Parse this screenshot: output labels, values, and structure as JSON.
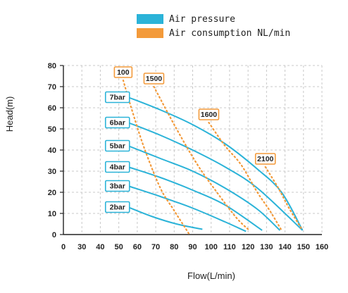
{
  "chart_data": {
    "type": "line",
    "xlabel": "Flow(L/min)",
    "ylabel": "Head(m)",
    "xlim": [
      0,
      160
    ],
    "ylim": [
      0,
      80
    ],
    "x_ticks": [
      "0",
      "30",
      "40",
      "50",
      "60",
      "70",
      "80",
      "90",
      "100",
      "110",
      "120",
      "130",
      "140",
      "150",
      "160"
    ],
    "y_ticks": [
      "0",
      "10",
      "20",
      "30",
      "40",
      "50",
      "60",
      "70",
      "80"
    ],
    "grid": "dashed",
    "legend": [
      {
        "label": "Air pressure",
        "color": "#2bb3d8"
      },
      {
        "label": "Air consumption NL/min",
        "color": "#f39a3a"
      }
    ],
    "series": [
      {
        "name": "2bar",
        "kind": "air-pressure",
        "x": [
          40,
          55,
          70,
          86
        ],
        "y": [
          13,
          8.5,
          5,
          2.5
        ]
      },
      {
        "name": "3bar",
        "kind": "air-pressure",
        "x": [
          40,
          60,
          80,
          100,
          113
        ],
        "y": [
          23,
          18,
          12.5,
          6,
          1.5
        ]
      },
      {
        "name": "4bar",
        "kind": "air-pressure",
        "x": [
          40,
          60,
          80,
          100,
          123
        ],
        "y": [
          32,
          27,
          21,
          14,
          2
        ]
      },
      {
        "name": "5bar",
        "kind": "air-pressure",
        "x": [
          40,
          60,
          80,
          100,
          120,
          134
        ],
        "y": [
          42,
          36,
          30,
          22,
          12,
          2
        ]
      },
      {
        "name": "6bar",
        "kind": "air-pressure",
        "x": [
          40,
          60,
          80,
          100,
          120,
          148
        ],
        "y": [
          53,
          47,
          40,
          32,
          22,
          2
        ]
      },
      {
        "name": "7bar",
        "kind": "air-pressure",
        "x": [
          40,
          60,
          80,
          100,
          120,
          135,
          148
        ],
        "y": [
          65,
          59,
          52,
          43,
          31,
          20,
          2
        ]
      },
      {
        "name": "100",
        "kind": "air-consumption",
        "x": [
          37,
          42,
          50,
          60,
          68,
          73,
          78
        ],
        "y": [
          73,
          60,
          41,
          22,
          12,
          6,
          0
        ]
      },
      {
        "name": "1500",
        "kind": "air-consumption",
        "x": [
          56,
          70,
          83,
          95,
          107,
          115
        ],
        "y": [
          70,
          50,
          33,
          20,
          8,
          2
        ]
      },
      {
        "name": "1600",
        "kind": "air-consumption",
        "x": [
          90,
          100,
          110,
          120,
          128,
          135
        ],
        "y": [
          53,
          42,
          33,
          20,
          11,
          2
        ]
      },
      {
        "name": "2100",
        "kind": "air-consumption",
        "x": [
          125,
          133,
          140,
          148
        ],
        "y": [
          32,
          22,
          12,
          2
        ]
      }
    ],
    "annotations": [
      {
        "label": "7bar",
        "kind": "air-pressure"
      },
      {
        "label": "6bar",
        "kind": "air-pressure"
      },
      {
        "label": "5bar",
        "kind": "air-pressure"
      },
      {
        "label": "4bar",
        "kind": "air-pressure"
      },
      {
        "label": "3bar",
        "kind": "air-pressure"
      },
      {
        "label": "2bar",
        "kind": "air-pressure"
      },
      {
        "label": "100",
        "kind": "air-consumption"
      },
      {
        "label": "1500",
        "kind": "air-consumption"
      },
      {
        "label": "1600",
        "kind": "air-consumption"
      },
      {
        "label": "2100",
        "kind": "air-consumption"
      }
    ]
  }
}
